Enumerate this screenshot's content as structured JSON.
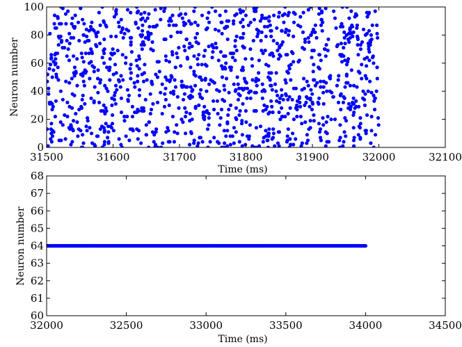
{
  "colors": {
    "marker": "#0000ff",
    "axes": "#000000",
    "background": "#ffffff"
  },
  "chart_data": [
    {
      "type": "scatter",
      "xlabel": "Time (ms)",
      "ylabel": "Neuron number",
      "xlim": [
        31500,
        32100
      ],
      "ylim": [
        0,
        100
      ],
      "xticks": [
        "31500",
        "31600",
        "31700",
        "31800",
        "31900",
        "32000",
        "32100"
      ],
      "yticks": [
        "0",
        "20",
        "40",
        "60",
        "80",
        "100"
      ],
      "grid": false,
      "legend": "none",
      "series": [
        {
          "description": "random raster spikes, approx. 1200 points, neurons 0-100 between 31500 and 32000 ms",
          "points": [
            [
              31503,
              42
            ],
            [
              31505,
              81
            ],
            [
              31507,
              66
            ],
            [
              31509,
              12
            ],
            [
              31512,
              94
            ],
            [
              31514,
              33
            ],
            [
              31517,
              57
            ],
            [
              31519,
              5
            ],
            [
              31522,
              88
            ],
            [
              31524,
              71
            ],
            [
              31527,
              23
            ],
            [
              31529,
              47
            ],
            [
              31532,
              97
            ],
            [
              31534,
              62
            ],
            [
              31537,
              15
            ],
            [
              31539,
              38
            ],
            [
              31542,
              85
            ],
            [
              31544,
              54
            ],
            [
              31547,
              8
            ],
            [
              31549,
              76
            ],
            [
              31552,
              29
            ],
            [
              31554,
              91
            ],
            [
              31557,
              44
            ],
            [
              31559,
              67
            ],
            [
              31562,
              19
            ],
            [
              31564,
              83
            ],
            [
              31567,
              35
            ],
            [
              31569,
              58
            ],
            [
              31572,
              2
            ],
            [
              31574,
              73
            ],
            [
              31577,
              49
            ],
            [
              31579,
              96
            ],
            [
              31582,
              26
            ],
            [
              31584,
              64
            ],
            [
              31587,
              11
            ],
            [
              31589,
              87
            ],
            [
              31592,
              40
            ],
            [
              31594,
              55
            ],
            [
              31597,
              79
            ],
            [
              31599,
              17
            ],
            [
              31602,
              93
            ],
            [
              31604,
              31
            ],
            [
              31607,
              69
            ],
            [
              31609,
              6
            ],
            [
              31612,
              51
            ],
            [
              31614,
              84
            ],
            [
              31617,
              22
            ],
            [
              31619,
              60
            ],
            [
              31622,
              98
            ],
            [
              31624,
              37
            ],
            [
              31627,
              75
            ],
            [
              31629,
              13
            ],
            [
              31632,
              46
            ],
            [
              31634,
              89
            ],
            [
              31637,
              27
            ],
            [
              31639,
              65
            ],
            [
              31642,
              3
            ],
            [
              31644,
              80
            ],
            [
              31647,
              53
            ],
            [
              31649,
              34
            ],
            [
              31652,
              92
            ],
            [
              31654,
              18
            ],
            [
              31657,
              70
            ],
            [
              31659,
              45
            ],
            [
              31662,
              9
            ],
            [
              31664,
              86
            ],
            [
              31667,
              32
            ],
            [
              31669,
              61
            ],
            [
              31672,
              99
            ],
            [
              31674,
              24
            ],
            [
              31677,
              77
            ],
            [
              31679,
              50
            ],
            [
              31682,
              14
            ],
            [
              31684,
              90
            ],
            [
              31687,
              39
            ],
            [
              31689,
              68
            ],
            [
              31692,
              4
            ],
            [
              31694,
              57
            ],
            [
              31697,
              82
            ],
            [
              31699,
              28
            ],
            [
              31702,
              95
            ],
            [
              31704,
              43
            ],
            [
              31707,
              72
            ],
            [
              31709,
              10
            ],
            [
              31712,
              63
            ],
            [
              31714,
              36
            ],
            [
              31717,
              88
            ],
            [
              31719,
              20
            ],
            [
              31722,
              52
            ],
            [
              31724,
              78
            ],
            [
              31727,
              1
            ],
            [
              31729,
              66
            ],
            [
              31732,
              41
            ],
            [
              31734,
              94
            ],
            [
              31737,
              25
            ],
            [
              31739,
              59
            ],
            [
              31742,
              85
            ],
            [
              31744,
              16
            ],
            [
              31747,
              48
            ],
            [
              31749,
              73
            ],
            [
              31752,
              7
            ],
            [
              31754,
              97
            ],
            [
              31757,
              33
            ],
            [
              31759,
              62
            ],
            [
              31762,
              21
            ],
            [
              31764,
              81
            ],
            [
              31767,
              44
            ],
            [
              31769,
              56
            ],
            [
              31772,
              12
            ],
            [
              31774,
              90
            ],
            [
              31777,
              30
            ],
            [
              31779,
              67
            ],
            [
              31782,
              3
            ],
            [
              31784,
              76
            ],
            [
              31787,
              50
            ],
            [
              31789,
              38
            ],
            [
              31792,
              96
            ],
            [
              31794,
              19
            ],
            [
              31797,
              71
            ],
            [
              31799,
              47
            ],
            [
              31802,
              8
            ],
            [
              31804,
              87
            ],
            [
              31807,
              35
            ],
            [
              31809,
              63
            ],
            [
              31812,
              99
            ],
            [
              31814,
              26
            ],
            [
              31817,
              79
            ],
            [
              31819,
              53
            ],
            [
              31822,
              15
            ],
            [
              31824,
              92
            ],
            [
              31827,
              41
            ],
            [
              31829,
              69
            ],
            [
              31832,
              5
            ],
            [
              31834,
              58
            ],
            [
              31837,
              83
            ],
            [
              31839,
              29
            ],
            [
              31842,
              94
            ],
            [
              31844,
              45
            ],
            [
              31847,
              74
            ],
            [
              31849,
              11
            ],
            [
              31852,
              65
            ],
            [
              31854,
              37
            ],
            [
              31857,
              89
            ],
            [
              31859,
              22
            ],
            [
              31862,
              54
            ],
            [
              31864,
              80
            ],
            [
              31867,
              2
            ],
            [
              31869,
              68
            ],
            [
              31872,
              42
            ],
            [
              31874,
              95
            ],
            [
              31877,
              27
            ],
            [
              31879,
              61
            ],
            [
              31882,
              86
            ],
            [
              31884,
              17
            ],
            [
              31887,
              49
            ],
            [
              31889,
              75
            ],
            [
              31892,
              9
            ],
            [
              31894,
              98
            ],
            [
              31897,
              34
            ],
            [
              31899,
              64
            ],
            [
              31902,
              23
            ],
            [
              31904,
              82
            ],
            [
              31907,
              46
            ],
            [
              31909,
              57
            ],
            [
              31912,
              13
            ],
            [
              31914,
              91
            ],
            [
              31917,
              31
            ],
            [
              31919,
              70
            ],
            [
              31922,
              4
            ],
            [
              31924,
              77
            ],
            [
              31927,
              51
            ],
            [
              31929,
              39
            ],
            [
              31932,
              97
            ],
            [
              31934,
              20
            ],
            [
              31937,
              72
            ],
            [
              31939,
              48
            ],
            [
              31942,
              7
            ],
            [
              31944,
              88
            ],
            [
              31947,
              36
            ],
            [
              31949,
              62
            ],
            [
              31952,
              100
            ],
            [
              31954,
              28
            ],
            [
              31957,
              78
            ],
            [
              31959,
              55
            ],
            [
              31962,
              14
            ],
            [
              31964,
              93
            ],
            [
              31967,
              43
            ],
            [
              31969,
              66
            ],
            [
              31972,
              6
            ],
            [
              31974,
              59
            ],
            [
              31977,
              84
            ],
            [
              31979,
              30
            ],
            [
              31982,
              96
            ],
            [
              31984,
              40
            ],
            [
              31987,
              73
            ],
            [
              31989,
              12
            ],
            [
              31992,
              60
            ],
            [
              31994,
              35
            ],
            [
              31997,
              87
            ],
            [
              31999,
              21
            ]
          ]
        }
      ]
    },
    {
      "type": "scatter",
      "xlabel": "Time (ms)",
      "ylabel": "Neuron number",
      "xlim": [
        32000,
        34500
      ],
      "ylim": [
        60,
        68
      ],
      "xticks": [
        "32000",
        "32500",
        "33000",
        "33500",
        "34000",
        "34500"
      ],
      "yticks": [
        "60",
        "61",
        "62",
        "63",
        "64",
        "65",
        "66",
        "67",
        "68"
      ],
      "grid": false,
      "legend": "none",
      "series": [
        {
          "description": "single neuron 64 firing continuously from 32000 to about 34000 ms",
          "neuron": 64,
          "x_start": 32000,
          "x_end": 34000,
          "step": 4
        }
      ]
    }
  ]
}
